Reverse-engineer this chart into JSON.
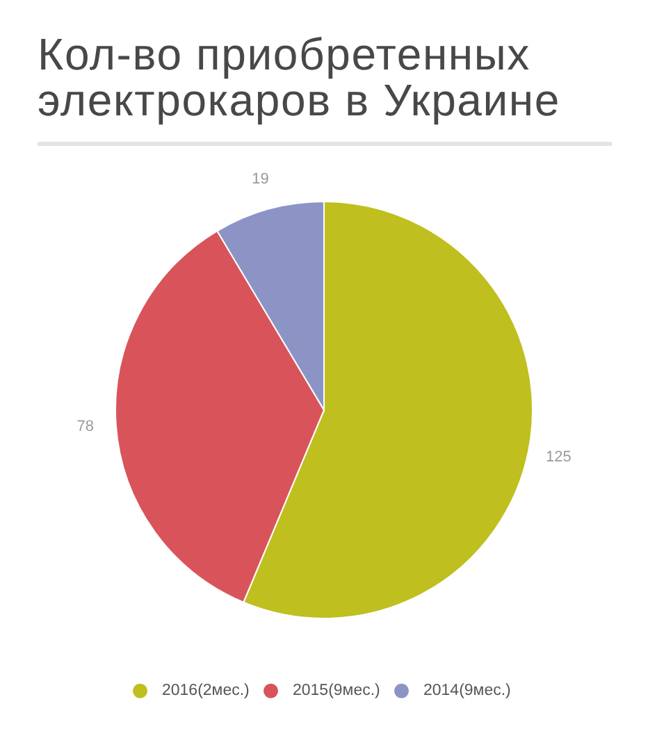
{
  "chart_data": {
    "type": "pie",
    "title": "Кол-во приобретенных электрокаров в Украине",
    "categories": [
      "2016(2мес.)",
      "2015(9мес.)",
      "2014(9мес.)"
    ],
    "values": [
      125,
      78,
      19
    ],
    "colors": [
      "#bfbf1f",
      "#d9545a",
      "#8c94c6"
    ],
    "data_labels": true,
    "legend": "bottom"
  }
}
